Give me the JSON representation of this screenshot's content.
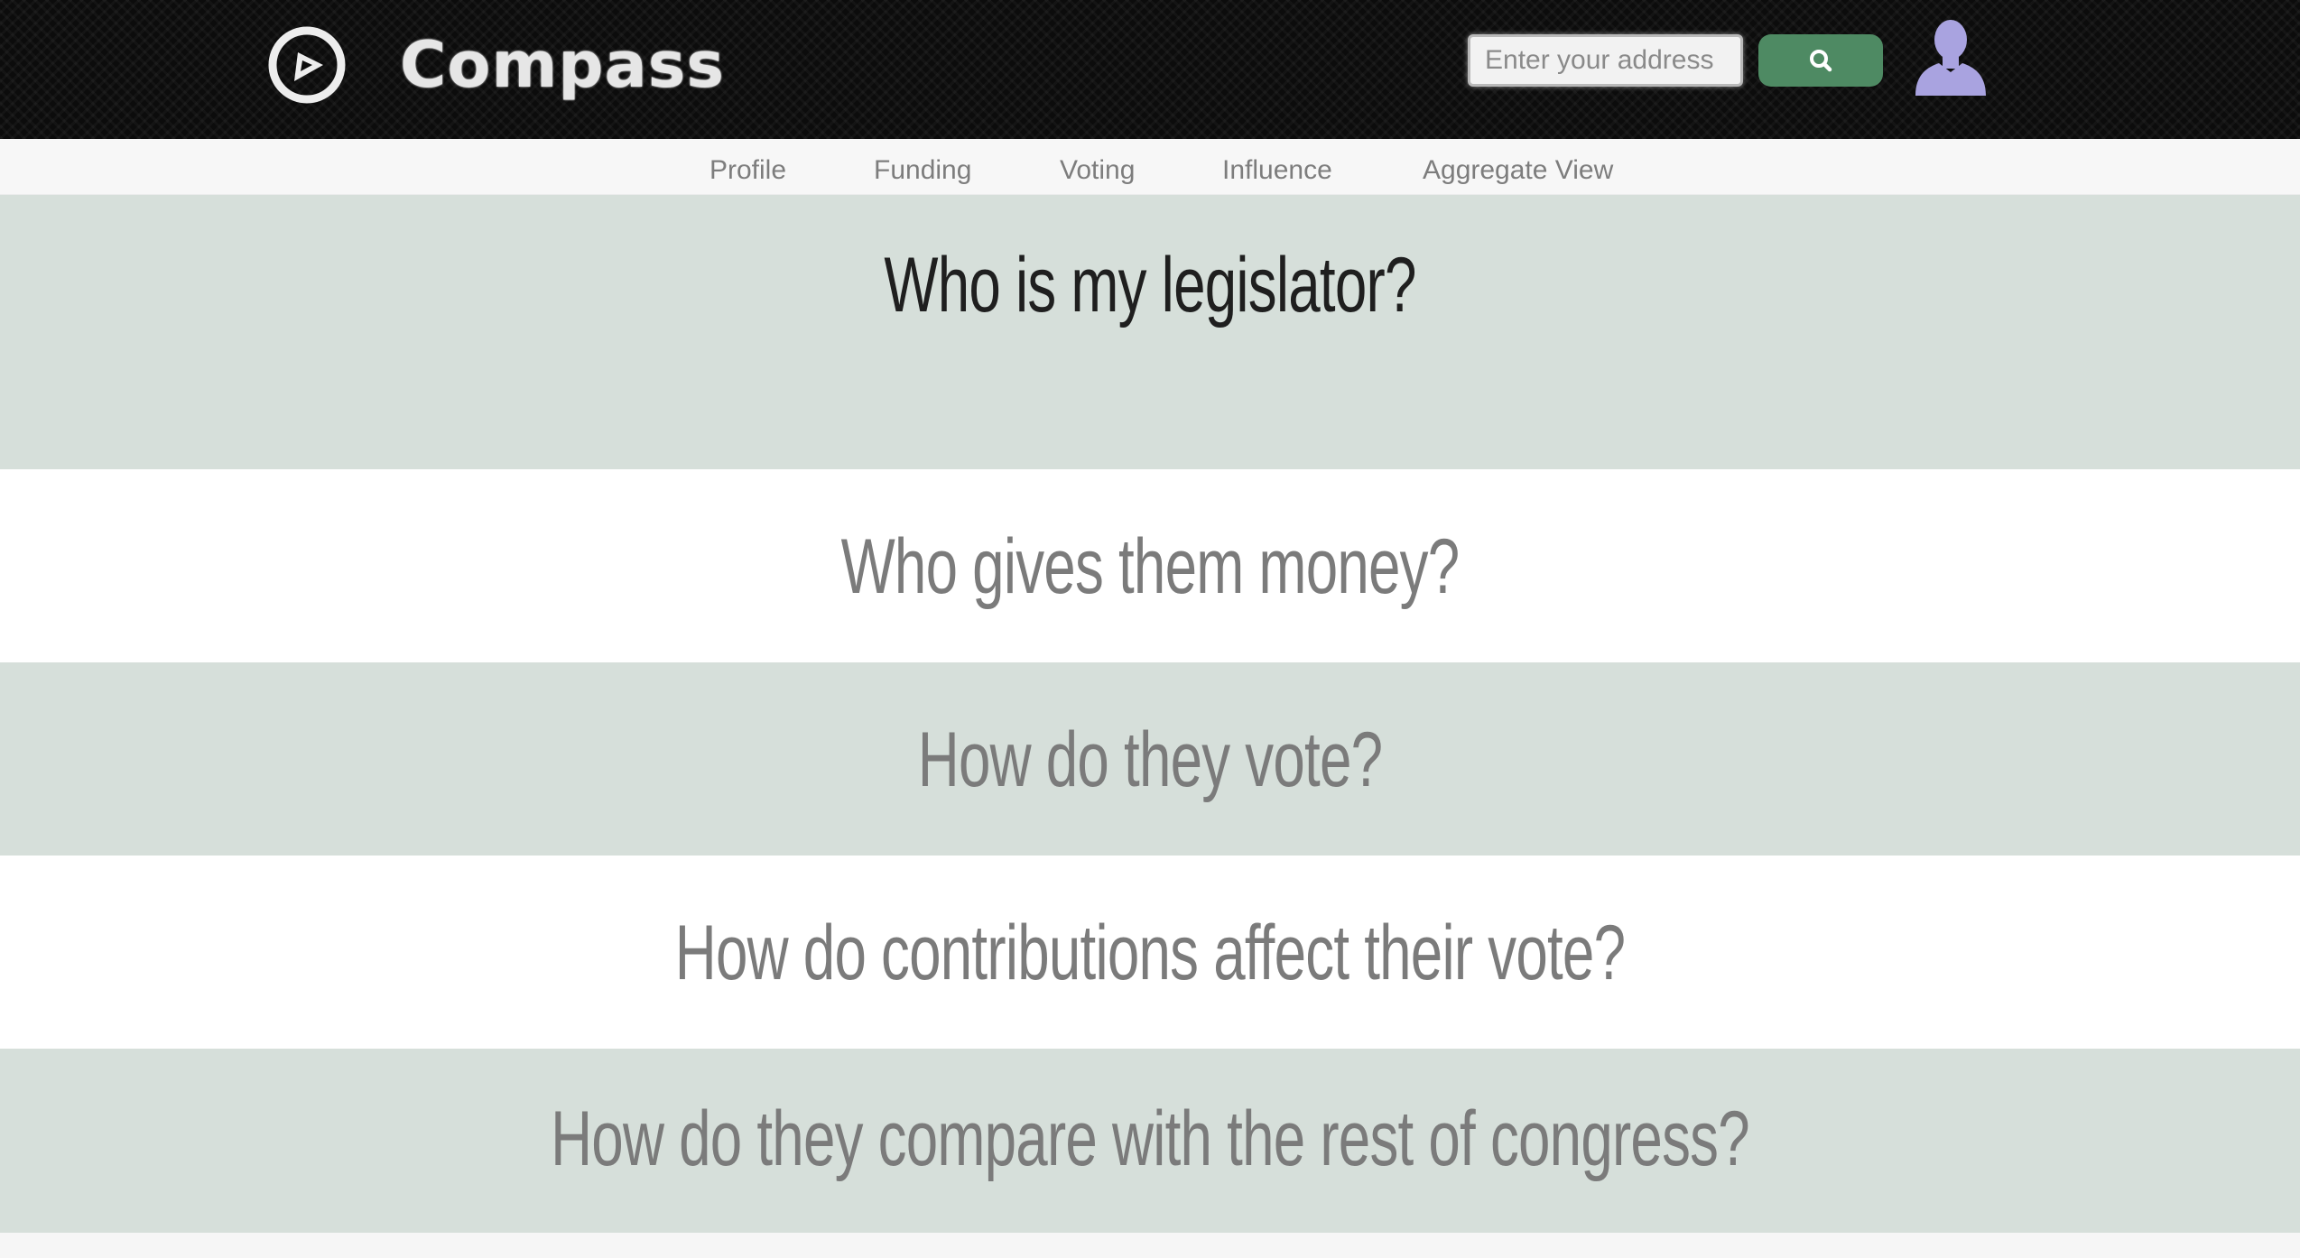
{
  "header": {
    "brand": "Compass",
    "search": {
      "placeholder": "Enter your address",
      "value": ""
    },
    "search_button_icon": "search-icon",
    "avatar_icon": "user-silhouette-icon",
    "logo_icon": "compass-logo-icon"
  },
  "nav": {
    "items": [
      {
        "label": "Profile"
      },
      {
        "label": "Funding"
      },
      {
        "label": "Voting"
      },
      {
        "label": "Influence"
      },
      {
        "label": "Aggregate View"
      }
    ]
  },
  "sections": [
    {
      "question": "Who is my legislator?",
      "active": true
    },
    {
      "question": "Who gives them money?",
      "active": false
    },
    {
      "question": "How do they vote?",
      "active": false
    },
    {
      "question": "How do contributions affect their vote?",
      "active": false
    },
    {
      "question": "How do they compare with the rest of congress?",
      "active": false
    }
  ],
  "colors": {
    "header_bg": "#0c0c0c",
    "accent_green": "#4e8a63",
    "avatar": "#a9a3e0",
    "section_shade": "#d6dfda",
    "question_text": "#7b7b7b",
    "active_question_text": "#1f1f1f"
  }
}
